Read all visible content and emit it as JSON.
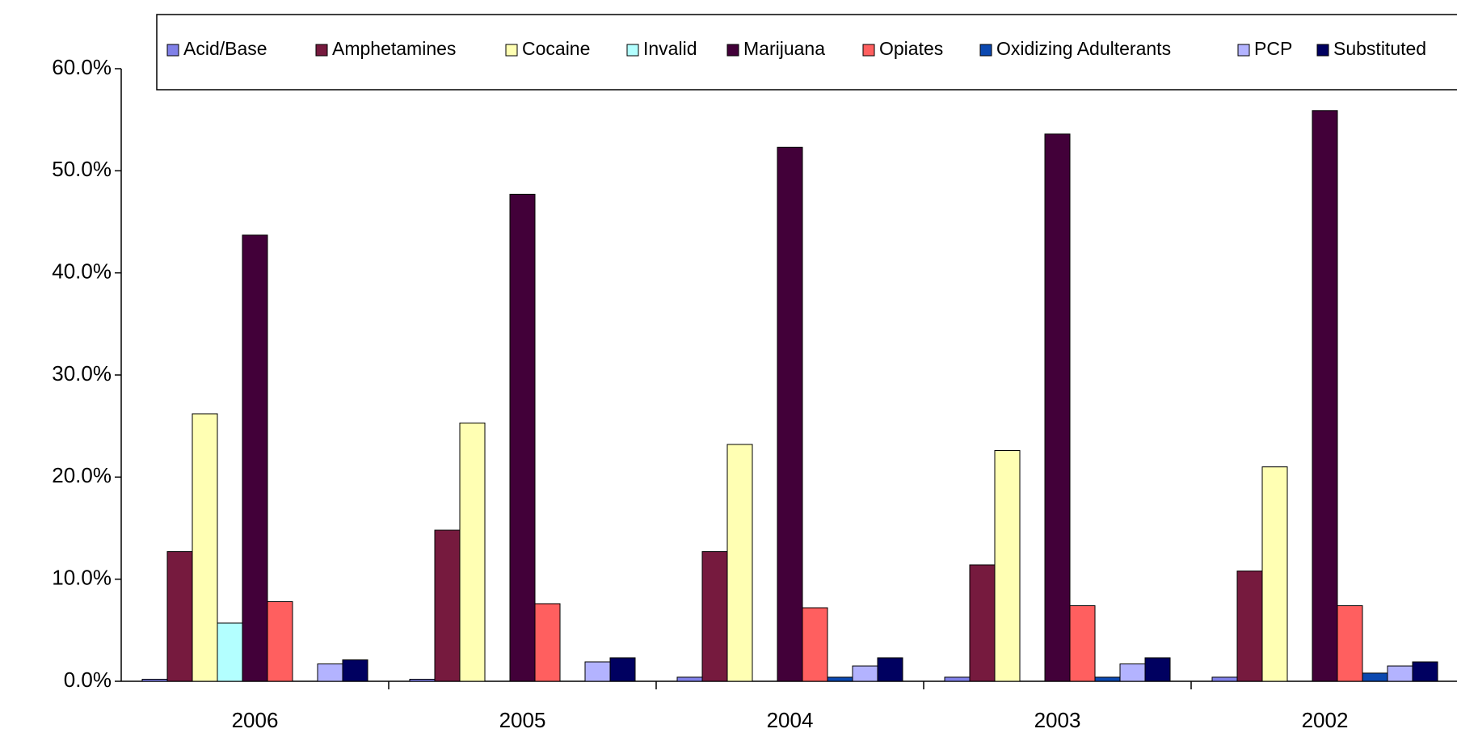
{
  "chart_data": {
    "type": "bar",
    "categories": [
      "2006",
      "2005",
      "2004",
      "2003",
      "2002"
    ],
    "series": [
      {
        "name": "Acid/Base",
        "color": "#8080e8",
        "values": [
          0.2,
          0.2,
          0.4,
          0.4,
          0.4
        ]
      },
      {
        "name": "Amphetamines",
        "color": "#761a3e",
        "values": [
          12.7,
          14.8,
          12.7,
          11.4,
          10.8
        ]
      },
      {
        "name": "Cocaine",
        "color": "#ffffb3",
        "values": [
          26.2,
          25.3,
          23.2,
          22.6,
          21.0
        ]
      },
      {
        "name": "Invalid",
        "color": "#b3ffff",
        "values": [
          5.7,
          0,
          0,
          0,
          0
        ]
      },
      {
        "name": "Marijuana",
        "color": "#420039",
        "values": [
          43.7,
          47.7,
          52.3,
          53.6,
          55.9
        ]
      },
      {
        "name": "Opiates",
        "color": "#ff5f5f",
        "values": [
          7.8,
          7.6,
          7.2,
          7.4,
          7.4
        ]
      },
      {
        "name": "Oxidizing Adulterants",
        "color": "#0b48b0",
        "values": [
          0,
          0,
          0.4,
          0.4,
          0.8
        ]
      },
      {
        "name": "PCP",
        "color": "#b3b3ff",
        "values": [
          1.7,
          1.9,
          1.5,
          1.7,
          1.5
        ]
      },
      {
        "name": "Substituted",
        "color": "#000060",
        "values": [
          2.1,
          2.3,
          2.3,
          2.3,
          1.9
        ]
      }
    ],
    "ylim": [
      0,
      60
    ],
    "yticks": [
      {
        "value": 0,
        "label": "0.0%"
      },
      {
        "value": 10,
        "label": "10.0%"
      },
      {
        "value": 20,
        "label": "20.0%"
      },
      {
        "value": 30,
        "label": "30.0%"
      },
      {
        "value": 40,
        "label": "40.0%"
      },
      {
        "value": 50,
        "label": "50.0%"
      },
      {
        "value": 60,
        "label": "60.0%"
      }
    ],
    "legend": "top"
  }
}
